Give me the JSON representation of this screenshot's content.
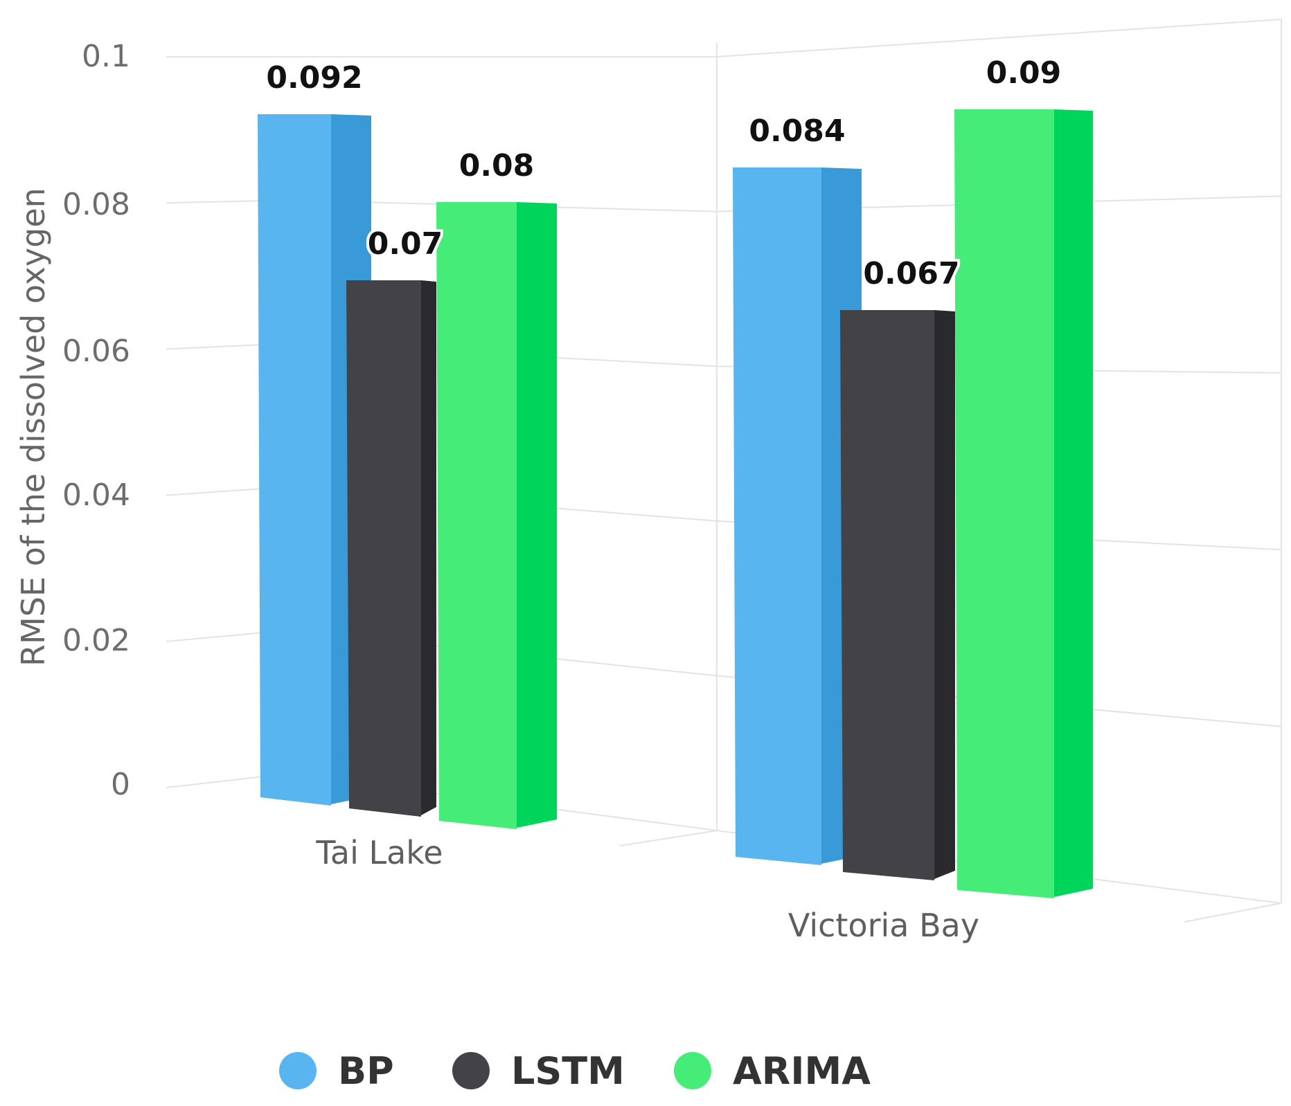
{
  "chart_data": {
    "type": "bar",
    "title": "",
    "xlabel": "",
    "ylabel": "RMSE of the dissolved oxygen",
    "ylim": [
      0,
      0.1
    ],
    "yticks": [
      "0",
      "0.02",
      "0.04",
      "0.06",
      "0.08",
      "0.1"
    ],
    "categories": [
      "Tai Lake",
      "Victoria Bay"
    ],
    "series": [
      {
        "name": "BP",
        "values": [
          0.092,
          0.084
        ],
        "labels": [
          "0.092",
          "0.084"
        ],
        "color": "#58b5ef",
        "side_color": "#3a9ad8"
      },
      {
        "name": "LSTM",
        "values": [
          0.07,
          0.067
        ],
        "labels": [
          "0.07",
          "0.067"
        ],
        "color": "#434247",
        "side_color": "#2a292e"
      },
      {
        "name": "ARIMA",
        "values": [
          0.08,
          0.09
        ],
        "labels": [
          "0.08",
          "0.09"
        ],
        "color": "#45ed78",
        "side_color": "#00d45a"
      }
    ],
    "legend_position": "bottom",
    "style": "3d-column",
    "grid": true
  }
}
